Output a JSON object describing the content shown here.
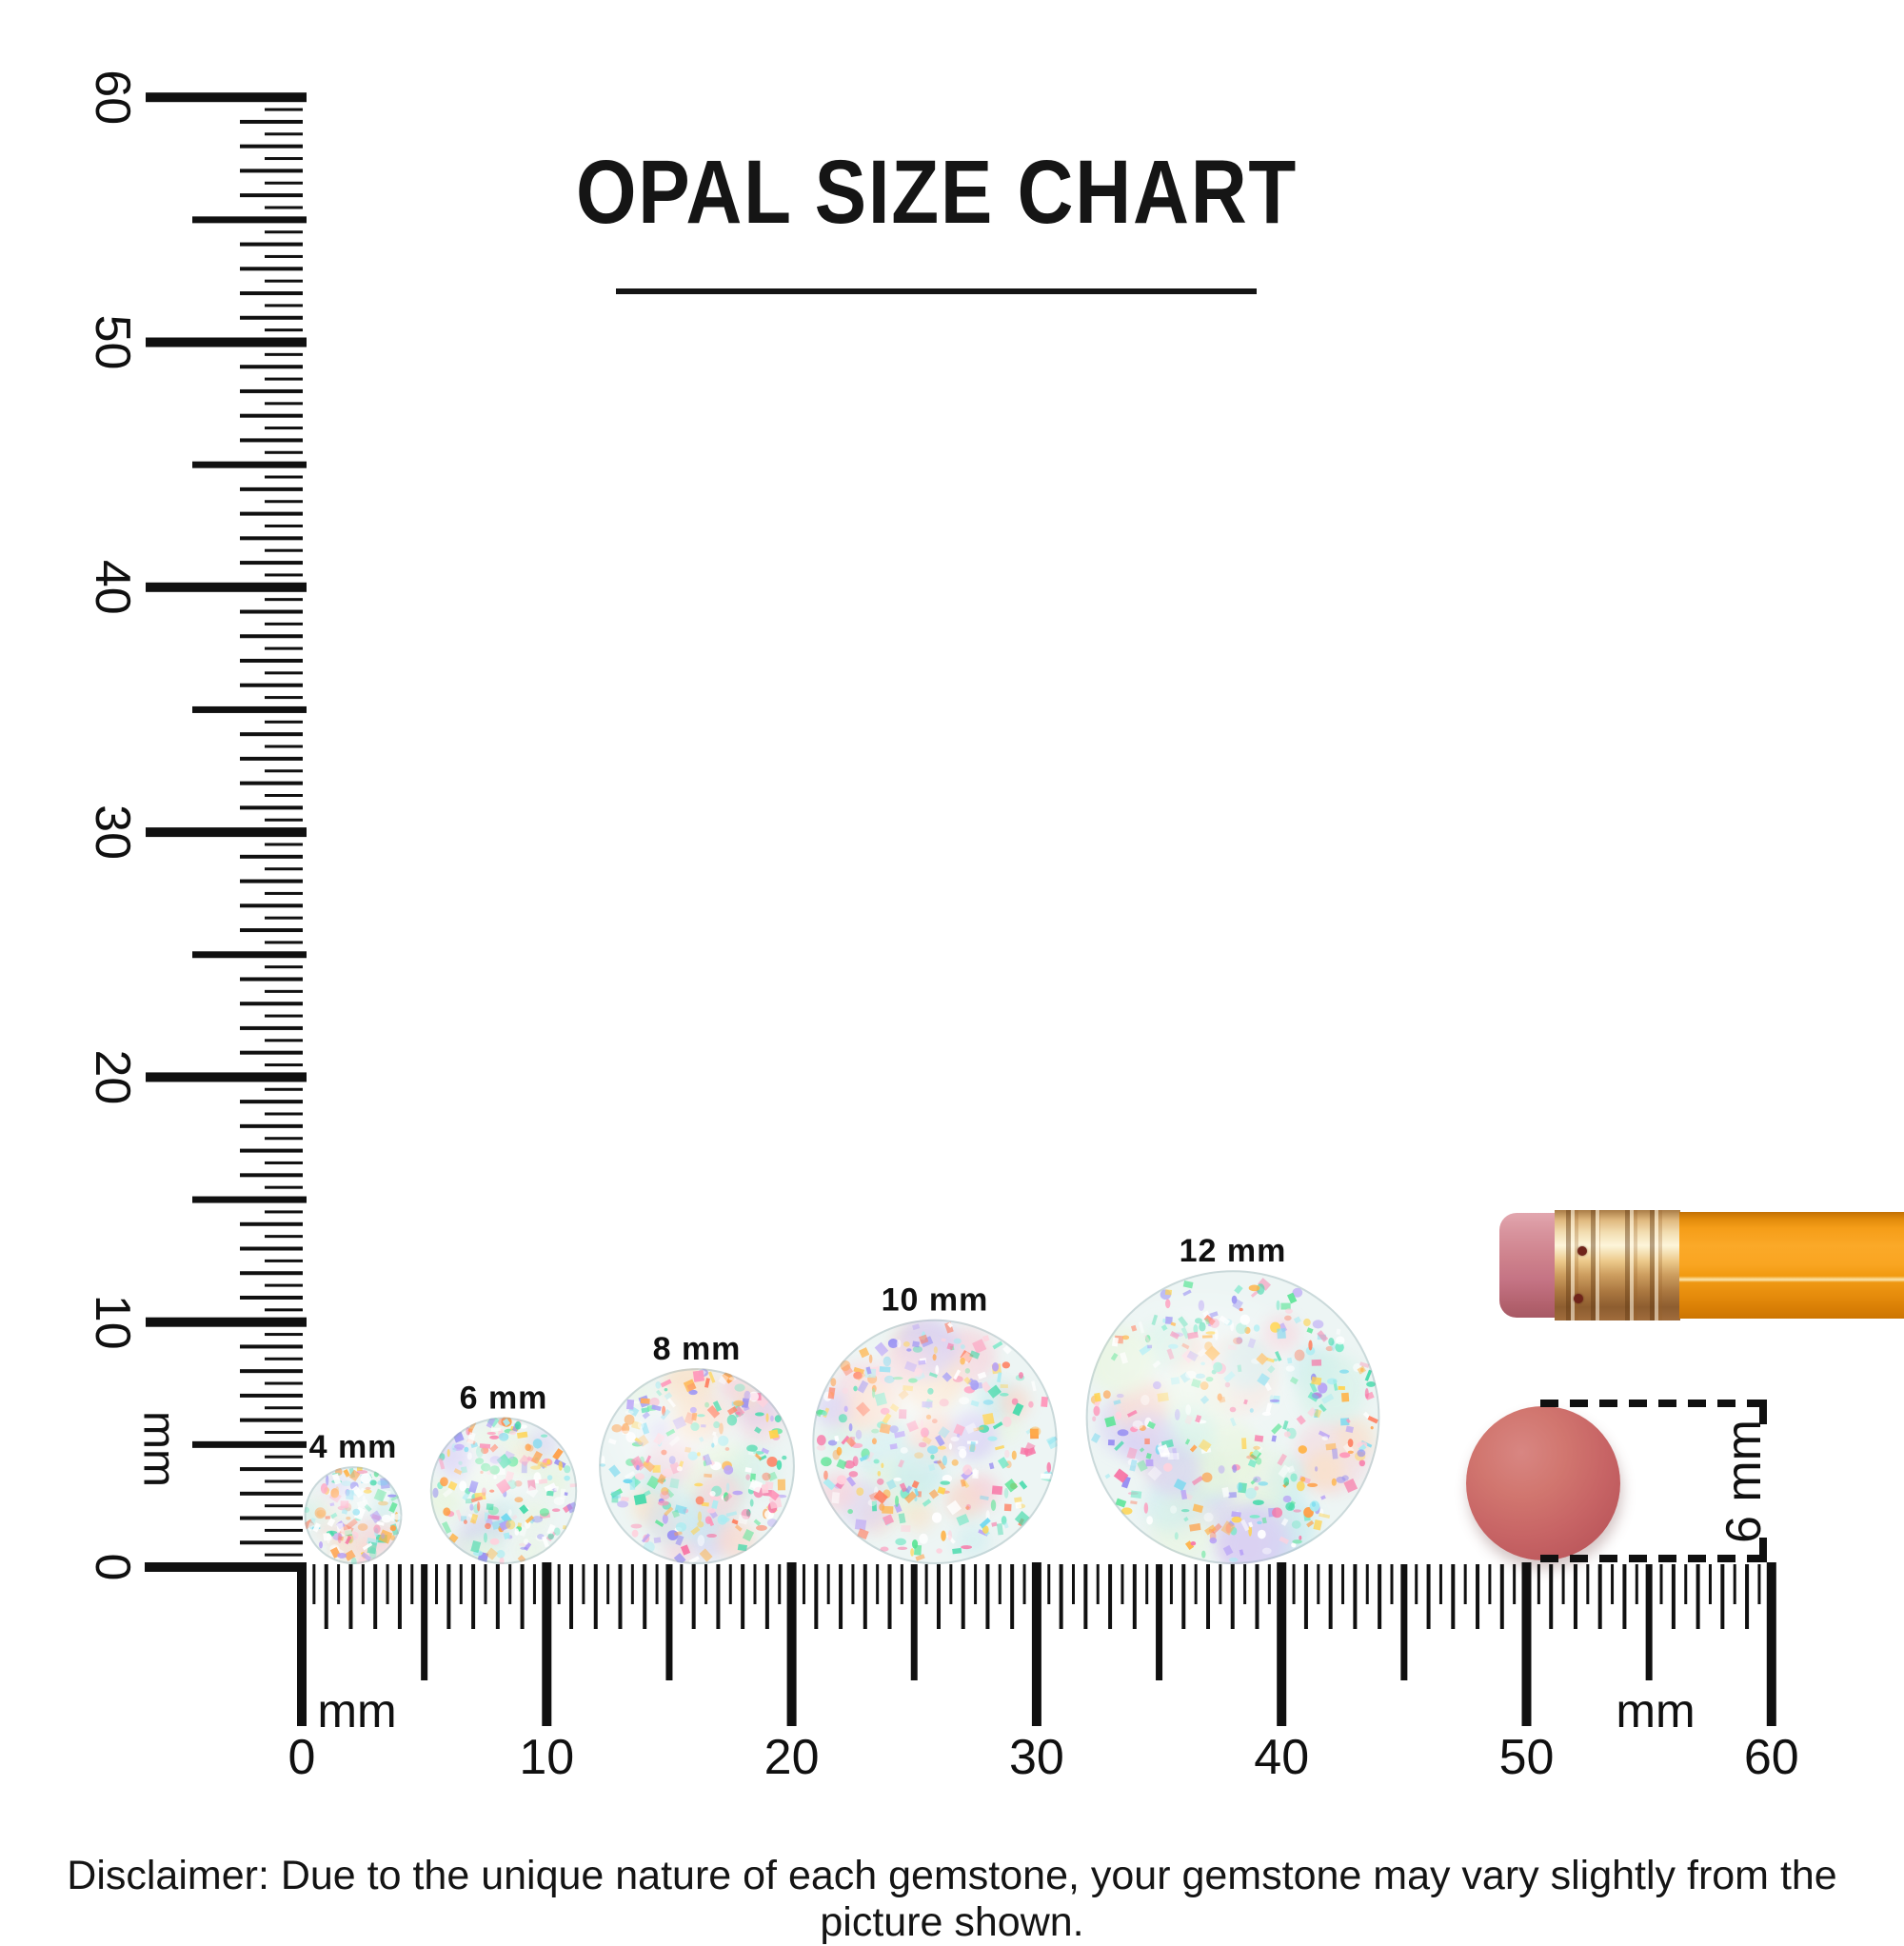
{
  "title": "OPAL SIZE CHART",
  "rulers": {
    "vertical": {
      "unit_label": "mm",
      "tick_numbers": [
        "0",
        "10",
        "20",
        "30",
        "40",
        "50",
        "60"
      ]
    },
    "horizontal": {
      "unit_label_left": "mm",
      "unit_label_right": "mm",
      "tick_numbers": [
        "0",
        "10",
        "20",
        "30",
        "40",
        "50",
        "60"
      ]
    }
  },
  "opals": [
    {
      "label": "4 mm",
      "mm": 4
    },
    {
      "label": "6 mm",
      "mm": 6
    },
    {
      "label": "8 mm",
      "mm": 8
    },
    {
      "label": "10 mm",
      "mm": 10
    },
    {
      "label": "12 mm",
      "mm": 12
    }
  ],
  "comparison": {
    "eraser_disc_label": "6 mm"
  },
  "disclaimer": "Disclaimer: Due to the unique nature of each gemstone, your gemstone may vary slightly from the picture shown.",
  "colors": {
    "ink": "#111111",
    "pencil_body": "#f7a01a",
    "pencil_ferrule": "#d9ab6b",
    "pencil_eraser_tip": "#c97884",
    "eraser_disc": "#c76465",
    "opal_base": "#edf5f4"
  }
}
